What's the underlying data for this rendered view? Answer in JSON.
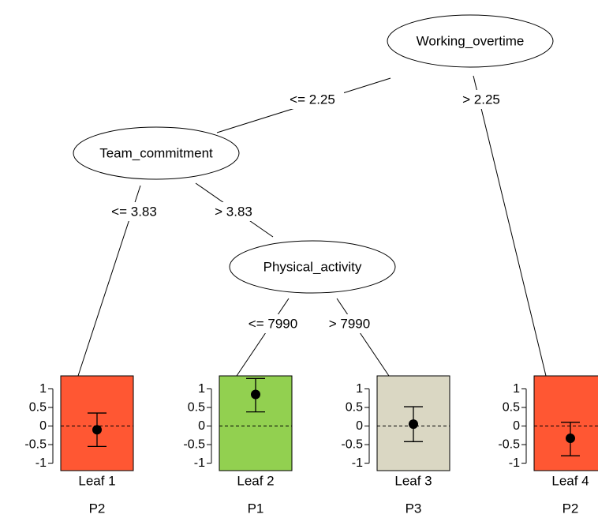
{
  "nodes": [
    {
      "id": "n1",
      "label": "Working_overtime"
    },
    {
      "id": "n2",
      "label": "Team_commitment"
    },
    {
      "id": "n3",
      "label": "Physical_activity"
    }
  ],
  "edges": [
    {
      "from": "n1",
      "to": "n2",
      "label": "<= 2.25"
    },
    {
      "from": "n1",
      "to": "leaf4",
      "label": "> 2.25"
    },
    {
      "from": "n2",
      "to": "leaf1",
      "label": "<= 3.83"
    },
    {
      "from": "n2",
      "to": "n3",
      "label": "> 3.83"
    },
    {
      "from": "n3",
      "to": "leaf2",
      "label": "<= 7990"
    },
    {
      "from": "n3",
      "to": "leaf3",
      "label": "> 7990"
    }
  ],
  "leaf_axis": {
    "ticks": [
      "1",
      "0.5",
      "0",
      "-0.5",
      "-1"
    ],
    "tick_values": [
      1,
      0.5,
      0,
      -0.5,
      -1
    ],
    "range": [
      -1.2,
      1.35
    ]
  },
  "leaves": [
    {
      "id": "leaf1",
      "label": "Leaf 1",
      "group": "P2",
      "color": "#ff5733",
      "estimate": -0.1,
      "ci": [
        -0.55,
        0.35
      ]
    },
    {
      "id": "leaf2",
      "label": "Leaf 2",
      "group": "P1",
      "color": "#92d050",
      "estimate": 0.85,
      "ci": [
        0.38,
        1.28
      ]
    },
    {
      "id": "leaf3",
      "label": "Leaf 3",
      "group": "P3",
      "color": "#dad7c3",
      "estimate": 0.05,
      "ci": [
        -0.42,
        0.52
      ]
    },
    {
      "id": "leaf4",
      "label": "Leaf 4",
      "group": "P2",
      "color": "#ff5733",
      "estimate": -0.33,
      "ci": [
        -0.8,
        0.1
      ]
    }
  ]
}
